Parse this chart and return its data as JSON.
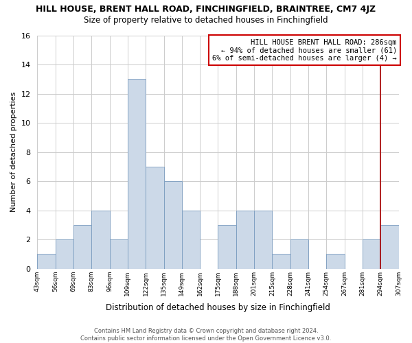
{
  "title": "HILL HOUSE, BRENT HALL ROAD, FINCHINGFIELD, BRAINTREE, CM7 4JZ",
  "subtitle": "Size of property relative to detached houses in Finchingfield",
  "xlabel": "Distribution of detached houses by size in Finchingfield",
  "ylabel": "Number of detached properties",
  "bin_labels": [
    "43sqm",
    "56sqm",
    "69sqm",
    "83sqm",
    "96sqm",
    "109sqm",
    "122sqm",
    "135sqm",
    "149sqm",
    "162sqm",
    "175sqm",
    "188sqm",
    "201sqm",
    "215sqm",
    "228sqm",
    "241sqm",
    "254sqm",
    "267sqm",
    "281sqm",
    "294sqm",
    "307sqm"
  ],
  "bar_heights": [
    1,
    2,
    3,
    4,
    2,
    13,
    7,
    6,
    4,
    0,
    3,
    4,
    4,
    1,
    2,
    0,
    1,
    0,
    2,
    3,
    0
  ],
  "bar_color": "#ccd9e8",
  "ylim": [
    0,
    16
  ],
  "yticks": [
    0,
    2,
    4,
    6,
    8,
    10,
    12,
    14,
    16
  ],
  "marker_bin_index": 19,
  "marker_color": "#aa0000",
  "annotation_title": "HILL HOUSE BRENT HALL ROAD: 286sqm",
  "annotation_line1": "← 94% of detached houses are smaller (61)",
  "annotation_line2": "6% of semi-detached houses are larger (4) →",
  "annotation_box_color": "#ffffff",
  "annotation_box_edge": "#cc0000",
  "footer1": "Contains HM Land Registry data © Crown copyright and database right 2024.",
  "footer2": "Contains public sector information licensed under the Open Government Licence v3.0.",
  "background_color": "#ffffff",
  "grid_color": "#cccccc"
}
